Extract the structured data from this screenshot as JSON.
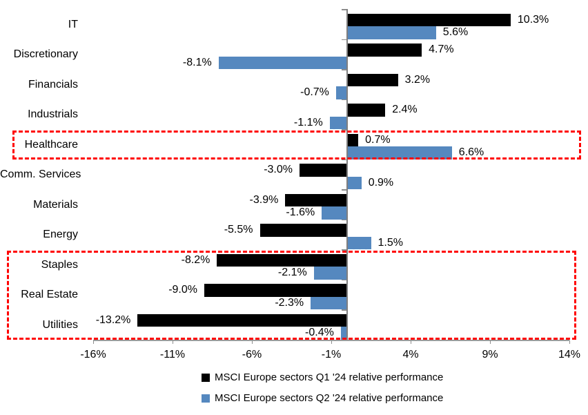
{
  "chart_data": {
    "type": "bar",
    "orientation": "horizontal",
    "unit": "%",
    "grid": false,
    "legend_position": "bottom",
    "categories": [
      "IT",
      "Discretionary",
      "Financials",
      "Industrials",
      "Healthcare",
      "Comm. Services",
      "Materials",
      "Energy",
      "Staples",
      "Real Estate",
      "Utilities"
    ],
    "series": [
      {
        "name": "MSCI Europe sectors Q1 '24 relative performance",
        "color": "#000000",
        "values": [
          10.3,
          4.7,
          3.2,
          2.4,
          0.7,
          -3.0,
          -3.9,
          -5.5,
          -8.2,
          -9.0,
          -13.2
        ],
        "labels": [
          "10.3%",
          "4.7%",
          "3.2%",
          "2.4%",
          "0.7%",
          "-3.0%",
          "-3.9%",
          "-5.5%",
          "-8.2%",
          "-9.0%",
          "-13.2%"
        ]
      },
      {
        "name": "MSCI Europe sectors Q2 '24 relative performance",
        "color": "#5588BF",
        "values": [
          5.6,
          -8.1,
          -0.7,
          -1.1,
          6.6,
          0.9,
          -1.6,
          1.5,
          -2.1,
          -2.3,
          -0.4
        ],
        "labels": [
          "5.6%",
          "-8.1%",
          "-0.7%",
          "-1.1%",
          "6.6%",
          "0.9%",
          "-1.6%",
          "1.5%",
          "-2.1%",
          "-2.3%",
          "-0.4%"
        ]
      }
    ],
    "x_axis": {
      "min": -16,
      "max": 14,
      "tick_values": [
        -16,
        -11,
        -6,
        -1,
        4,
        9,
        14
      ],
      "tick_labels": [
        "-16%",
        "-11%",
        "-6%",
        "-1%",
        "4%",
        "9%",
        "14%"
      ]
    },
    "axis_color": "#8C8C8C",
    "highlights": [
      {
        "name": "healthcare-highlight",
        "start_row": 4,
        "end_row": 4,
        "color": "#FF0000"
      },
      {
        "name": "defensive-sectors-highlight",
        "start_row": 8,
        "end_row": 10,
        "color": "#FF0000"
      }
    ]
  }
}
